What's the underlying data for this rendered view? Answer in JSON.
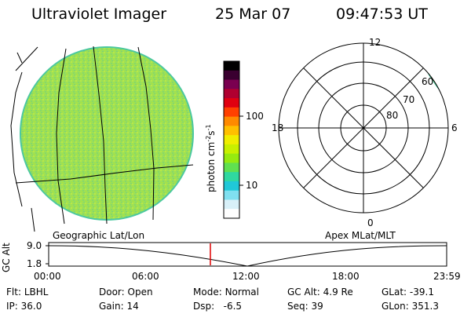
{
  "header": {
    "title": "Ultraviolet Imager",
    "date": "25 Mar 07",
    "time": "09:47:53 UT"
  },
  "colorbar": {
    "label": "photon cm",
    "label_exp1": "-2",
    "label_mid": "s",
    "label_exp2": "-1",
    "ticks": [
      "100",
      "10"
    ],
    "colors": [
      "#000000",
      "#3a0030",
      "#7a0050",
      "#b00030",
      "#e00010",
      "#ff4000",
      "#ff8a00",
      "#ffc000",
      "#f0ee00",
      "#c8f000",
      "#96ea10",
      "#60e050",
      "#30d8a0",
      "#20c8d8",
      "#80e0f0",
      "#d8f0f8",
      "#ffffff"
    ]
  },
  "left_panel": {
    "caption": "Geographic Lat/Lon",
    "disk_color": "#9ee055"
  },
  "right_panel": {
    "caption": "Apex MLat/MLT",
    "mlt_labels": {
      "top": "12",
      "left": "18",
      "right": "6",
      "bottom": "0"
    },
    "lat_labels": [
      "80",
      "70",
      "60"
    ]
  },
  "timeline": {
    "axis_label": "GC Alt",
    "y_ticks": [
      "9.0",
      "1.8"
    ],
    "x_ticks": [
      "00:00",
      "06:00",
      "12:00",
      "18:00",
      "23:59"
    ],
    "current_time_color": "#e00000"
  },
  "status": {
    "filter_label": "Flt:",
    "filter_value": "LBHL",
    "ip_label": "IP:",
    "ip_value": "36.0",
    "door_label": "Door:",
    "door_value": "Open",
    "gain_label": "Gain:",
    "gain_value": "14",
    "mode_label": "Mode:",
    "mode_value": "Normal",
    "dsp_label": "Dsp:",
    "dsp_value": "-6.5",
    "gcalt_label": "GC Alt:",
    "gcalt_value": "4.9 Re",
    "seq_label": "Seq:",
    "seq_value": "39",
    "glat_label": "GLat:",
    "glat_value": "-39.1",
    "glon_label": "GLon:",
    "glon_value": "351.3"
  }
}
